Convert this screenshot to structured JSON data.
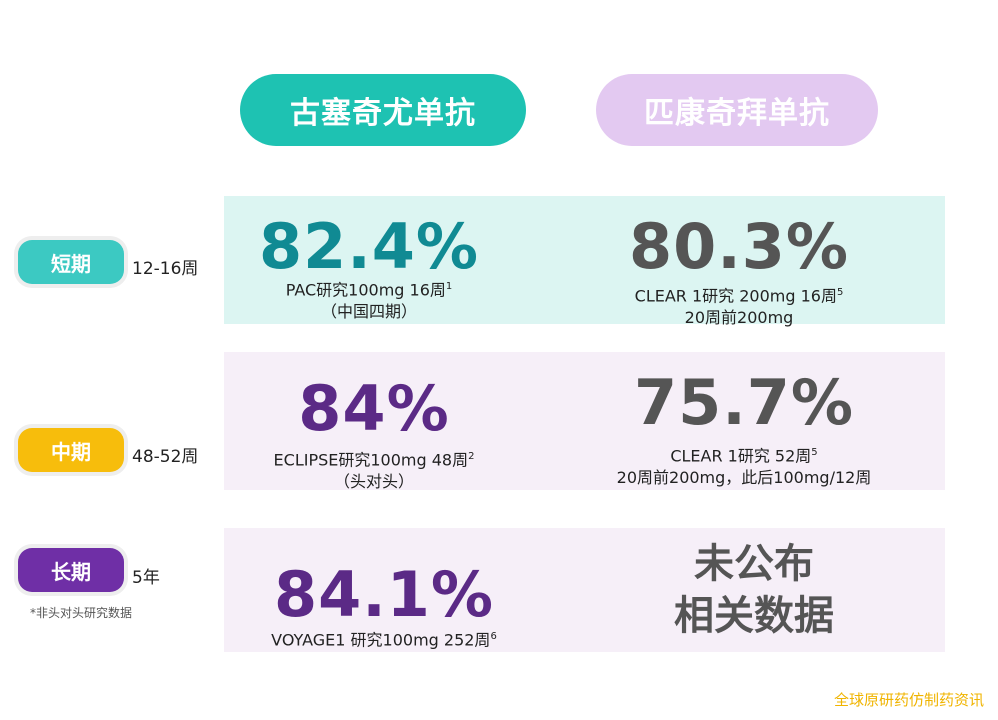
{
  "header": {
    "drug_a": "古塞奇尤单抗",
    "drug_b": "匹康奇拜单抗"
  },
  "colors": {
    "drug_a": "#1ec2b2",
    "drug_b": "#e3c9f1",
    "short_badge": "#3cc9c2",
    "mid_badge": "#f7bd0c",
    "long_badge": "#6f2fa6"
  },
  "rows": [
    {
      "badge": "短期",
      "period": "12-16周",
      "a_value": "82.4%",
      "a_line1": "PAC研究100mg 16周",
      "a_sup": "1",
      "a_line2": "（中国四期）",
      "b_value": "80.3%",
      "b_line1": "CLEAR 1研究 200mg 16周",
      "b_sup": "5",
      "b_line2": "20周前200mg"
    },
    {
      "badge": "中期",
      "period": "48-52周",
      "a_value": "84%",
      "a_line1": "ECLIPSE研究100mg 48周",
      "a_sup": "2",
      "a_line2": "（头对头）",
      "b_value": "75.7%",
      "b_line1": "CLEAR 1研究 52周",
      "b_sup": "5",
      "b_line2": "20周前200mg，此后100mg/12周"
    },
    {
      "badge": "长期",
      "period": "5年",
      "a_value": "84.1%",
      "a_line1": "VOYAGE1 研究100mg 252周",
      "a_sup": "6",
      "b_text1": "未公布",
      "b_text2": "相关数据"
    }
  ],
  "footnote": "*非头对头研究数据",
  "watermark": "全球原研药仿制药资讯"
}
